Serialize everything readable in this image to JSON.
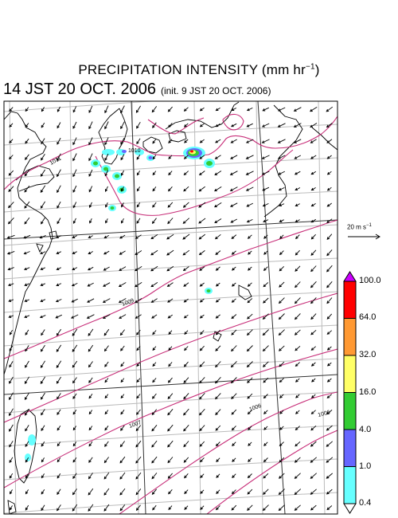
{
  "title": {
    "main": "PRECIPITATION INTENSITY (mm hr",
    "exp": "−1",
    "close": ")"
  },
  "subtitle": {
    "valid": "14 JST 20 OCT. 2006",
    "init": "(init. 9 JST 20 OCT. 2006)"
  },
  "wind_reference": {
    "label": "20 m s",
    "exp": "−1"
  },
  "isobar_labels": [
    "1011",
    "1010",
    "1009",
    "1007",
    "1006",
    "1006"
  ],
  "colorbar": {
    "levels": [
      "100.0",
      "64.0",
      "32.0",
      "16.0",
      "4.0",
      "1.0",
      "0.4"
    ],
    "colors": [
      "#cc00ff",
      "#ff0000",
      "#ff9933",
      "#ffff66",
      "#33cc33",
      "#6666ff",
      "#66ffff",
      "#ffffff"
    ]
  },
  "colors": {
    "isobar": "#c8307a",
    "grid": "#bbbbbb",
    "coast": "#000000"
  }
}
